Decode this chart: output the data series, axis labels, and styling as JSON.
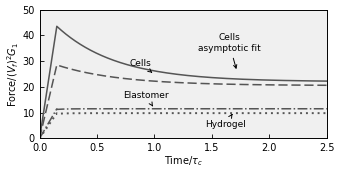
{
  "xlim": [
    0,
    2.5
  ],
  "ylim": [
    0,
    50
  ],
  "xticks": [
    0,
    0.5,
    1.0,
    1.5,
    2.0,
    2.5
  ],
  "yticks": [
    0,
    10,
    20,
    30,
    40,
    50
  ],
  "xlabel": "Time/τ_c",
  "ylabel": "Force/((V_f)²G₁)",
  "line_color": "#555555",
  "peak_time": 0.15,
  "peak_value": 43.5,
  "cells_solid_asymptote": 22.0,
  "cells_dashed_peak": 28.5,
  "cells_dashed_asymptote": 20.5,
  "cells_dashed_tau": 0.55,
  "elastomer_level": 11.5,
  "hydrogel_level": 9.8,
  "figsize": [
    3.4,
    1.74
  ],
  "dpi": 100
}
